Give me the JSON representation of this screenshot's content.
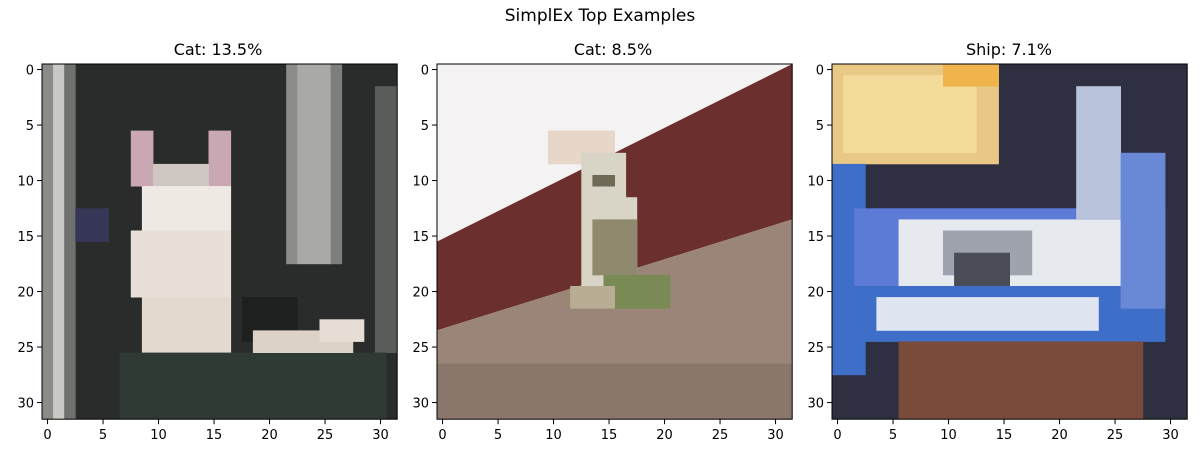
{
  "suptitle": "SimplEx Top Examples",
  "chart_data": [
    {
      "type": "image",
      "title": "Cat: 13.5%",
      "label": "Cat",
      "weight_percent": 13.5,
      "xticks": [
        0,
        5,
        10,
        15,
        20,
        25,
        30
      ],
      "yticks": [
        0,
        5,
        10,
        15,
        20,
        25,
        30
      ],
      "xlim": [
        -0.5,
        31.5
      ],
      "ylim": [
        31.5,
        -0.5
      ],
      "image_size": [
        32,
        32
      ],
      "scene": "cat",
      "palette": {
        "bg": "#2a2c2b",
        "cat": "#e8e0d8",
        "ear": "#c9a7b3",
        "stripe": "#c8c8c4",
        "pillar": "#a9aaa7",
        "base": "#2f3a34",
        "paw": "#dcd2c8"
      }
    },
    {
      "type": "image",
      "title": "Cat: 8.5%",
      "label": "Cat",
      "weight_percent": 8.5,
      "xticks": [
        0,
        5,
        10,
        15,
        20,
        25,
        30
      ],
      "yticks": [
        0,
        5,
        10,
        15,
        20,
        25,
        30
      ],
      "xlim": [
        -0.5,
        31.5
      ],
      "ylim": [
        31.5,
        -0.5
      ],
      "image_size": [
        32,
        32
      ],
      "scene": "cat-roof",
      "palette": {
        "sky": "#f4f2f2",
        "roof": "#6b2f2d",
        "ground": "#9b8578",
        "cat": "#d8d4c6",
        "catshade": "#8f8a6e",
        "grass": "#7a8a55"
      }
    },
    {
      "type": "image",
      "title": "Ship: 7.1%",
      "label": "Ship",
      "weight_percent": 7.1,
      "xticks": [
        0,
        5,
        10,
        15,
        20,
        25,
        30
      ],
      "yticks": [
        0,
        5,
        10,
        15,
        20,
        25,
        30
      ],
      "xlim": [
        -0.5,
        31.5
      ],
      "ylim": [
        31.5,
        -0.5
      ],
      "image_size": [
        32,
        32
      ],
      "scene": "ship",
      "palette": {
        "bg": "#2e3042",
        "sign": "#f3dc9a",
        "blue": "#3f6ec9",
        "hull": "#e6e9ee",
        "dark": "#4a4d57",
        "rust": "#7a4b3a"
      }
    }
  ]
}
